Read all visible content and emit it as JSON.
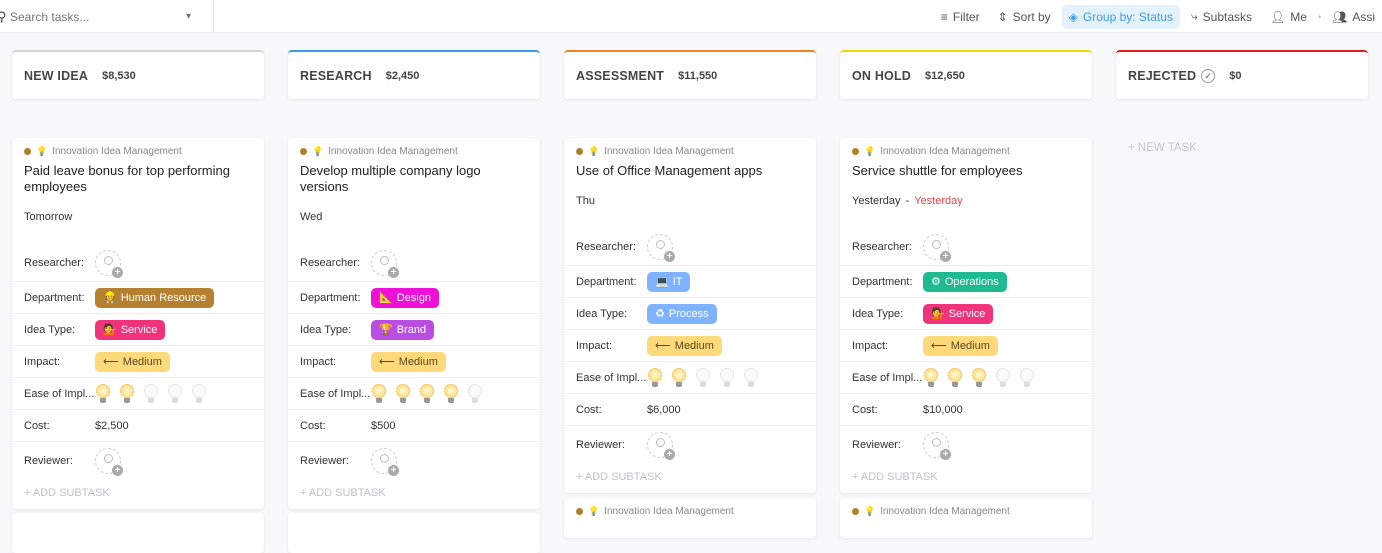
{
  "toolbar": {
    "search_placeholder": "Search tasks...",
    "filter": "Filter",
    "sort": "Sort by",
    "group": "Group by: Status",
    "subtasks": "Subtasks",
    "me": "Me",
    "assignees": "Assi"
  },
  "columns": [
    {
      "name": "NEW IDEA",
      "amount": "$8,530",
      "color": "#d3d3d3"
    },
    {
      "name": "RESEARCH",
      "amount": "$2,450",
      "color": "#3d9be9"
    },
    {
      "name": "ASSESSMENT",
      "amount": "$11,550",
      "color": "#f5811f"
    },
    {
      "name": "ON HOLD",
      "amount": "$12,650",
      "color": "#f8d600"
    },
    {
      "name": "REJECTED",
      "amount": "$0",
      "color": "#e31a1a",
      "done_icon": true,
      "new_task": "+ NEW TASK"
    }
  ],
  "labels": {
    "list": "Innovation Idea Management",
    "researcher": "Researcher:",
    "department": "Department:",
    "idea_type": "Idea Type:",
    "impact": "Impact:",
    "ease": "Ease of Impl...",
    "cost": "Cost:",
    "reviewer": "Reviewer:",
    "add_subtask": "+ ADD SUBTASK"
  },
  "cards": [
    {
      "title": "Paid leave bonus for top performing employees",
      "date": "Tomorrow",
      "department": {
        "label": "Human Resource",
        "icon": "👷",
        "color": "#b5802f"
      },
      "idea_type": {
        "label": "Service",
        "icon": "💁",
        "color": "#f0337a"
      },
      "impact": {
        "label": "Medium",
        "icon": "⟵",
        "color": "#ffd97a"
      },
      "ease": 2,
      "cost": "$2,500"
    },
    {
      "title": "Develop multiple company logo versions",
      "date": "Wed",
      "department": {
        "label": "Design",
        "icon": "📐",
        "color": "#ee10d8"
      },
      "idea_type": {
        "label": "Brand",
        "icon": "🏆",
        "color": "#b94ee2"
      },
      "impact": {
        "label": "Medium",
        "icon": "⟵",
        "color": "#ffd97a"
      },
      "ease": 4,
      "cost": "$500"
    },
    {
      "title": "Use of Office Management apps",
      "date": "Thu",
      "department": {
        "label": "IT",
        "icon": "💻",
        "color": "#80b3ff"
      },
      "idea_type": {
        "label": "Process",
        "icon": "♻",
        "color": "#80b3ff"
      },
      "impact": {
        "label": "Medium",
        "icon": "⟵",
        "color": "#ffd97a"
      },
      "ease": 2,
      "cost": "$6,000"
    },
    {
      "title": "Service shuttle for employees",
      "date": "Yesterday",
      "date_end": "Yesterday",
      "department": {
        "label": "Operations",
        "icon": "⚙",
        "color": "#1fb992"
      },
      "idea_type": {
        "label": "Service",
        "icon": "💁",
        "color": "#f0337a"
      },
      "impact": {
        "label": "Medium",
        "icon": "⟵",
        "color": "#ffd97a"
      },
      "ease": 3,
      "cost": "$10,000"
    }
  ]
}
